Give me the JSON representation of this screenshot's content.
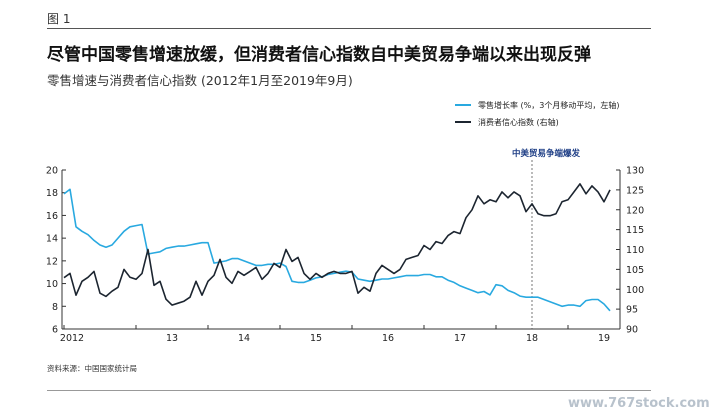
{
  "figure_label": "图 1",
  "title": "尽管中国零售增速放缓，但消费者信心指数自中美贸易争端以来出现反弹",
  "subtitle": "零售增速与消费者信心指数 (2012年1月至2019年9月)",
  "source": "资料来源：中国国家统计局",
  "watermark": "www.767stock.com",
  "colors": {
    "retail": "#29a9e0",
    "confidence": "#1c2530",
    "annotation": "#1f3f86"
  },
  "chart_data": {
    "type": "line",
    "x_start": "2012-01",
    "x_end": "2019-09",
    "x_tick_labels": [
      "2012",
      "13",
      "14",
      "15",
      "16",
      "17",
      "18",
      "19"
    ],
    "left_axis": {
      "ylim": [
        6,
        20
      ],
      "ticks": [
        "6",
        "8",
        "10",
        "12",
        "14",
        "16",
        "18",
        "20"
      ]
    },
    "right_axis": {
      "ylim": [
        90,
        130
      ],
      "ticks": [
        "90",
        "95",
        "100",
        "105",
        "110",
        "115",
        "120",
        "125",
        "130"
      ]
    },
    "legend": [
      "零售增长率 (%，3个月移动平均，左轴)",
      "消费者信心指数 (右轴)"
    ],
    "annotation": {
      "label": "中美贸易争端爆发",
      "x": "2018-07"
    },
    "series": [
      {
        "name": "零售增长率 (%，3个月移动平均，左轴)",
        "axis": "left",
        "values": [
          17.9,
          18.3,
          15.0,
          14.6,
          14.3,
          13.8,
          13.4,
          13.2,
          13.4,
          14.0,
          14.6,
          15.0,
          15.1,
          15.2,
          12.6,
          12.7,
          12.8,
          13.1,
          13.2,
          13.3,
          13.3,
          13.4,
          13.5,
          13.6,
          13.6,
          11.8,
          11.9,
          12.0,
          12.2,
          12.2,
          12.0,
          11.8,
          11.6,
          11.6,
          11.7,
          11.7,
          11.8,
          11.5,
          10.2,
          10.1,
          10.1,
          10.3,
          10.5,
          10.6,
          10.8,
          10.9,
          11.0,
          11.1,
          11.0,
          10.4,
          10.3,
          10.2,
          10.3,
          10.4,
          10.4,
          10.5,
          10.6,
          10.7,
          10.7,
          10.7,
          10.8,
          10.8,
          10.6,
          10.6,
          10.3,
          10.1,
          9.8,
          9.6,
          9.4,
          9.2,
          9.3,
          9.0,
          9.9,
          9.8,
          9.4,
          9.2,
          8.9,
          8.8,
          8.8,
          8.8,
          8.6,
          8.4,
          8.2,
          8.0,
          8.1,
          8.1,
          8.0,
          8.5,
          8.6,
          8.6,
          8.2,
          7.6
        ]
      },
      {
        "name": "消费者信心指数 (右轴)",
        "axis": "right",
        "values": [
          102.9,
          104.0,
          98.5,
          102.0,
          103.0,
          104.5,
          99.0,
          98.2,
          99.5,
          100.5,
          105.0,
          103.0,
          102.5,
          104.0,
          110.0,
          101.0,
          102.0,
          97.5,
          96.0,
          96.5,
          97.0,
          98.0,
          102.0,
          98.5,
          102.0,
          103.5,
          107.5,
          103.0,
          101.5,
          104.5,
          103.5,
          104.5,
          105.5,
          102.5,
          104.0,
          106.5,
          105.5,
          110.0,
          107.0,
          108.0,
          104.0,
          102.5,
          104.0,
          103.0,
          104.0,
          104.5,
          104.0,
          104.0,
          104.5,
          99.0,
          100.5,
          99.5,
          104.0,
          106.0,
          105.0,
          104.0,
          105.0,
          107.5,
          108.0,
          108.5,
          111.0,
          110.0,
          112.0,
          111.5,
          113.5,
          114.5,
          114.0,
          118.0,
          120.0,
          123.5,
          121.5,
          122.5,
          122.0,
          124.5,
          123.0,
          124.5,
          123.5,
          119.5,
          121.5,
          119.0,
          118.5,
          118.5,
          119.0,
          122.0,
          122.5,
          124.5,
          126.5,
          124.0,
          126.0,
          124.5,
          122.0,
          125.0
        ]
      }
    ]
  }
}
